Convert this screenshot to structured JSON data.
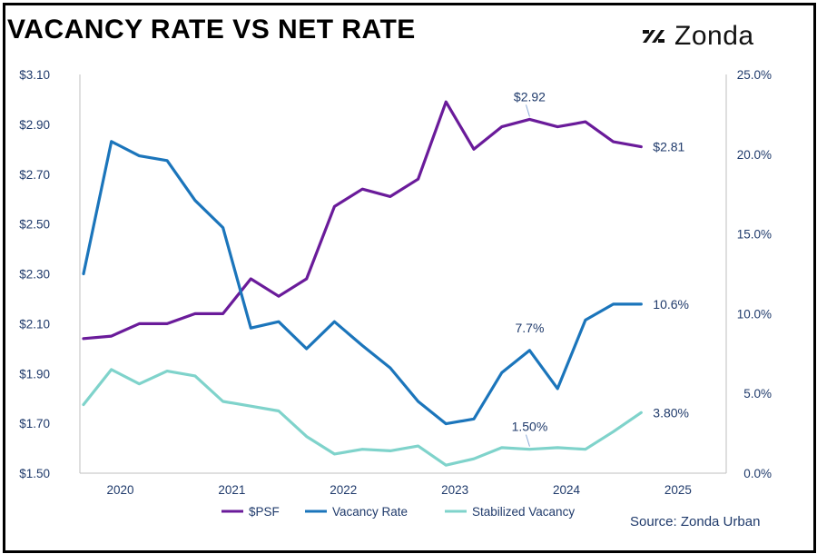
{
  "title": "VACANCY RATE VS NET RATE",
  "logo_text": "Zonda",
  "source": "Source: Zonda Urban",
  "colors": {
    "psf": "#6a1b9a",
    "vacancy": "#1b75bb",
    "stabilized": "#7fd3cb",
    "axis_text": "#1f3a6b"
  },
  "chart_data": {
    "type": "line",
    "title": "VACANCY RATE VS NET RATE",
    "x_tick_labels": [
      "2020",
      "2021",
      "2022",
      "2023",
      "2024",
      "2025"
    ],
    "y_left": {
      "ticks": [
        "$1.50",
        "$1.70",
        "$1.90",
        "$2.10",
        "$2.30",
        "$2.50",
        "$2.70",
        "$2.90",
        "$3.10"
      ],
      "ylim": [
        1.5,
        3.1
      ]
    },
    "y_right": {
      "ticks": [
        "0.0%",
        "5.0%",
        "10.0%",
        "15.0%",
        "20.0%",
        "25.0%"
      ],
      "ylim": [
        0,
        25
      ]
    },
    "x": [
      2019.67,
      2019.92,
      2020.17,
      2020.42,
      2020.67,
      2020.92,
      2021.17,
      2021.42,
      2021.67,
      2021.92,
      2022.17,
      2022.42,
      2022.67,
      2022.92,
      2023.17,
      2023.42,
      2023.67,
      2023.92,
      2024.17,
      2024.42,
      2024.67
    ],
    "series": [
      {
        "name": "$PSF",
        "axis": "left",
        "color": "#6a1b9a",
        "values": [
          2.04,
          2.05,
          2.1,
          2.1,
          2.14,
          2.14,
          2.28,
          2.21,
          2.28,
          2.57,
          2.64,
          2.61,
          2.68,
          2.99,
          2.8,
          2.89,
          2.92,
          2.89,
          2.91,
          2.83,
          2.81
        ]
      },
      {
        "name": "Vacancy Rate",
        "axis": "right",
        "color": "#1b75bb",
        "values": [
          12.5,
          20.8,
          19.9,
          19.6,
          17.1,
          15.4,
          9.1,
          9.5,
          7.8,
          9.5,
          8.0,
          6.6,
          4.5,
          3.1,
          3.4,
          6.3,
          7.7,
          5.3,
          9.6,
          10.6,
          10.6
        ]
      },
      {
        "name": "Stabilized Vacancy",
        "axis": "right",
        "color": "#7fd3cb",
        "values": [
          4.3,
          6.5,
          5.6,
          6.4,
          6.1,
          4.5,
          4.2,
          3.9,
          2.3,
          1.2,
          1.5,
          1.4,
          1.7,
          0.5,
          0.9,
          1.6,
          1.5,
          1.6,
          1.5,
          2.6,
          3.8
        ]
      }
    ],
    "annotations": [
      {
        "series": "$PSF",
        "index": 16,
        "text": "$2.92",
        "placement": "above",
        "leader": true
      },
      {
        "series": "$PSF",
        "index": 20,
        "text": "$2.81",
        "placement": "right"
      },
      {
        "series": "Vacancy Rate",
        "index": 16,
        "text": "7.7%",
        "placement": "above"
      },
      {
        "series": "Vacancy Rate",
        "index": 20,
        "text": "10.6%",
        "placement": "right"
      },
      {
        "series": "Stabilized Vacancy",
        "index": 16,
        "text": "1.50%",
        "placement": "above",
        "leader": true
      },
      {
        "series": "Stabilized Vacancy",
        "index": 20,
        "text": "3.80%",
        "placement": "right"
      }
    ],
    "legend": {
      "placement": "bottom-left",
      "items": [
        "$PSF",
        "Vacancy Rate",
        "Stabilized Vacancy"
      ]
    },
    "grid": false
  }
}
